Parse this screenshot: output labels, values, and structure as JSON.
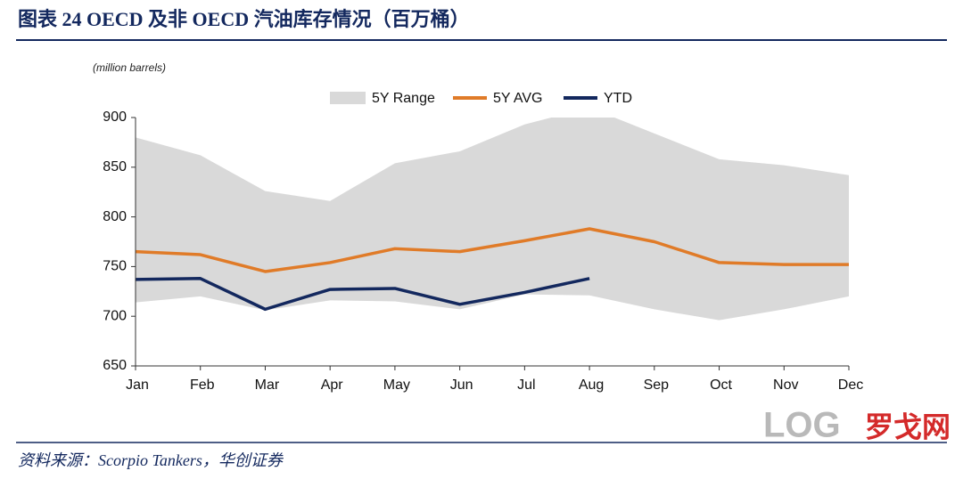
{
  "header": {
    "title": "图表 24   OECD 及非 OECD 汽油库存情况（百万桶）"
  },
  "chart_data": {
    "type": "line",
    "unit_label": "(million barrels)",
    "categories": [
      "Jan",
      "Feb",
      "Mar",
      "Apr",
      "May",
      "Jun",
      "Jul",
      "Aug",
      "Sep",
      "Oct",
      "Nov",
      "Dec"
    ],
    "range": {
      "name": "5Y Range",
      "color": "#d9d9d9",
      "upper": [
        880,
        862,
        826,
        816,
        854,
        866,
        893,
        910,
        884,
        858,
        852,
        842
      ],
      "lower": [
        714,
        720,
        706,
        716,
        715,
        707,
        722,
        721,
        707,
        696,
        707,
        720
      ]
    },
    "series": [
      {
        "name": "5Y AVG",
        "color": "#e07b28",
        "values": [
          765,
          762,
          745,
          754,
          768,
          765,
          776,
          788,
          775,
          754,
          752,
          752
        ]
      },
      {
        "name": "YTD",
        "color": "#13285e",
        "values": [
          737,
          738,
          707,
          727,
          728,
          712,
          724,
          738,
          null,
          null,
          null,
          null
        ]
      }
    ],
    "ylim": [
      650,
      900
    ],
    "yticks": [
      650,
      700,
      750,
      800,
      850,
      900
    ],
    "grid": false
  },
  "footer": {
    "source": "资料来源：Scorpio Tankers，华创证券",
    "logo": "LOG",
    "logo_cn": "罗戈网"
  }
}
